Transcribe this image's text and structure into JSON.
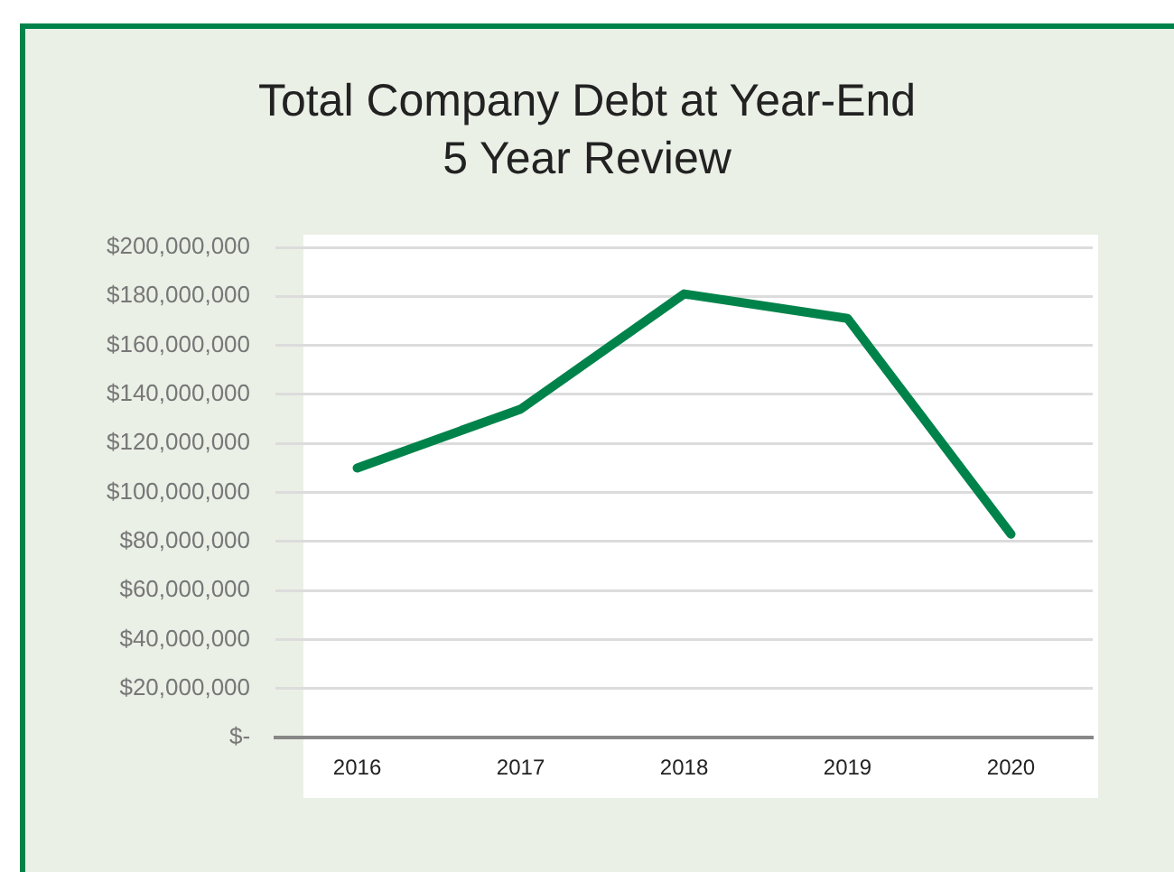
{
  "chart_data": {
    "type": "line",
    "title": "Total Company Debt at Year-End",
    "subtitle": "5 Year Review",
    "categories": [
      "2016",
      "2017",
      "2018",
      "2019",
      "2020"
    ],
    "series": [
      {
        "color": "#00834a",
        "values": [
          110000000,
          134000000,
          181000000,
          171000000,
          83000000
        ]
      }
    ],
    "ylim": [
      0,
      200000000
    ],
    "yticks": [
      {
        "value": 0,
        "label": "$-"
      },
      {
        "value": 20000000,
        "label": "$20,000,000"
      },
      {
        "value": 40000000,
        "label": "$40,000,000"
      },
      {
        "value": 60000000,
        "label": "$60,000,000"
      },
      {
        "value": 80000000,
        "label": "$80,000,000"
      },
      {
        "value": 100000000,
        "label": "$100,000,000"
      },
      {
        "value": 120000000,
        "label": "$120,000,000"
      },
      {
        "value": 140000000,
        "label": "$140,000,000"
      },
      {
        "value": 160000000,
        "label": "$160,000,000"
      },
      {
        "value": 180000000,
        "label": "$180,000,000"
      },
      {
        "value": 200000000,
        "label": "$200,000,000"
      }
    ],
    "grid": "y",
    "legend": false,
    "marker": "none",
    "line_style": "solid"
  }
}
